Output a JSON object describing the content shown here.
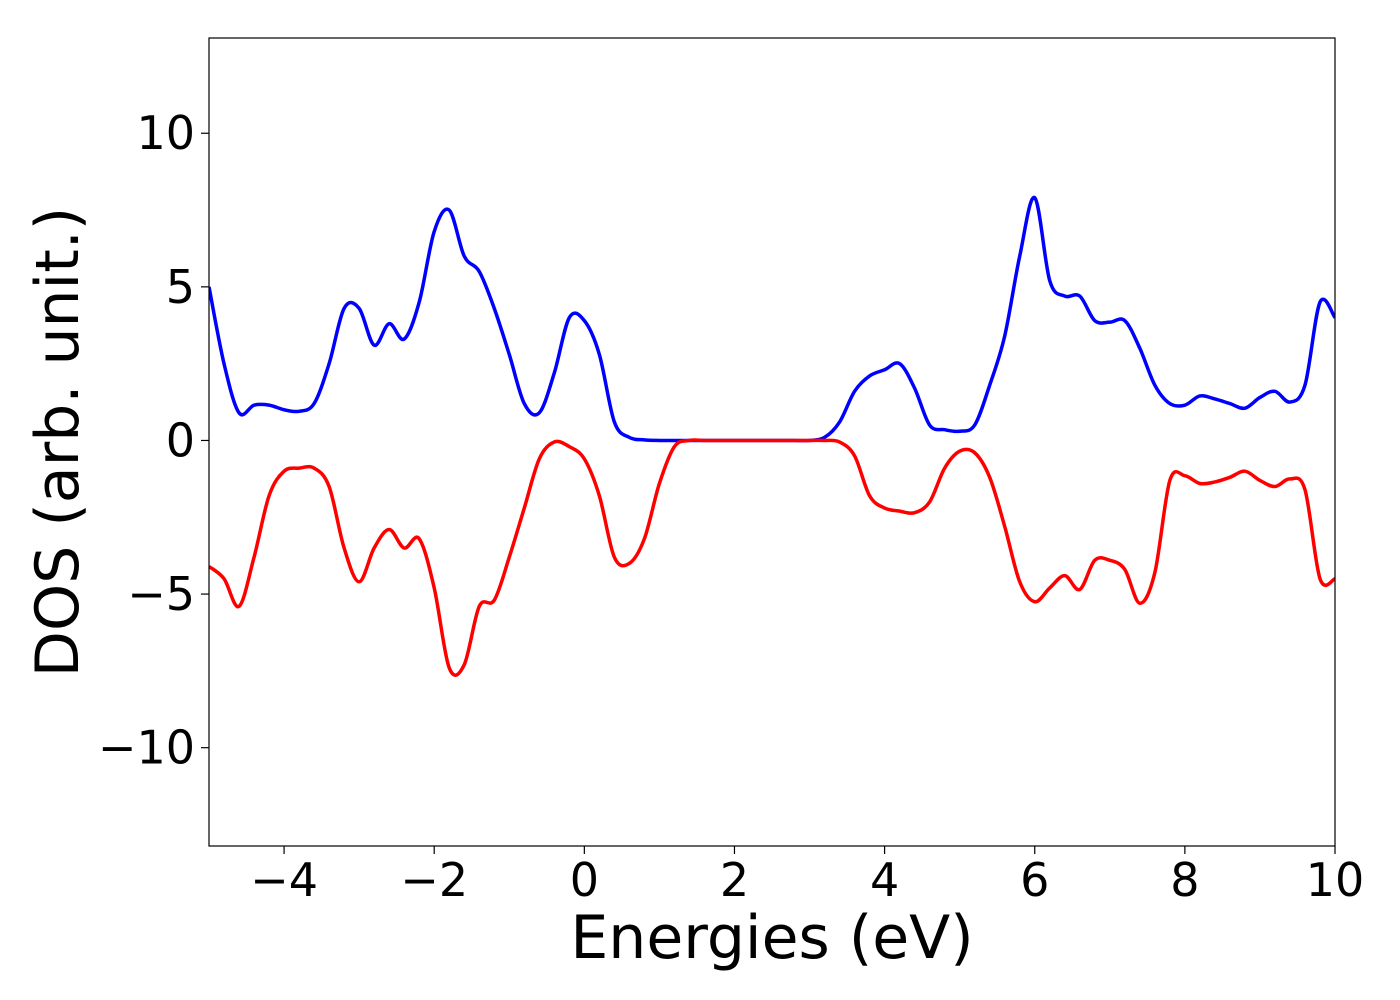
{
  "chart_data": {
    "type": "line",
    "xlabel": "Energies (eV)",
    "ylabel": "DOS (arb. unit.)",
    "x": [
      -5,
      -4.8,
      -4.6,
      -4.4,
      -4.2,
      -4,
      -3.8,
      -3.6,
      -3.4,
      -3.2,
      -3,
      -2.8,
      -2.6,
      -2.4,
      -2.2,
      -2,
      -1.8,
      -1.6,
      -1.4,
      -1.2,
      -1,
      -0.8,
      -0.6,
      -0.4,
      -0.2,
      0,
      0.2,
      0.4,
      0.6,
      0.8,
      1,
      1.2,
      1.4,
      1.6,
      1.8,
      2,
      2.2,
      2.4,
      2.6,
      2.8,
      3,
      3.2,
      3.4,
      3.6,
      3.8,
      4,
      4.2,
      4.4,
      4.6,
      4.8,
      5,
      5.2,
      5.4,
      5.6,
      5.8,
      6,
      6.2,
      6.4,
      6.6,
      6.8,
      7,
      7.2,
      7.4,
      7.6,
      7.8,
      8,
      8.2,
      8.4,
      8.6,
      8.8,
      9,
      9.2,
      9.4,
      9.6,
      9.8,
      10
    ],
    "series": [
      {
        "color": "#0000ff",
        "values": [
          5.0,
          2.5,
          0.9,
          1.15,
          1.15,
          1.0,
          0.95,
          1.2,
          2.5,
          4.3,
          4.3,
          3.1,
          3.8,
          3.3,
          4.5,
          6.8,
          7.5,
          6.0,
          5.5,
          4.3,
          2.8,
          1.2,
          0.9,
          2.2,
          4.0,
          3.9,
          2.8,
          0.6,
          0.1,
          0.02,
          0,
          0,
          0,
          0,
          0,
          0,
          0,
          0,
          0,
          0,
          0,
          0.1,
          0.6,
          1.6,
          2.1,
          2.3,
          2.5,
          1.7,
          0.5,
          0.35,
          0.3,
          0.5,
          1.8,
          3.4,
          6.0,
          7.9,
          5.2,
          4.7,
          4.7,
          3.9,
          3.85,
          3.9,
          3.0,
          1.8,
          1.2,
          1.15,
          1.45,
          1.35,
          1.2,
          1.05,
          1.4,
          1.6,
          1.25,
          1.8,
          4.5,
          4.0
        ]
      },
      {
        "color": "#ff0000",
        "values": [
          -4.1,
          -4.5,
          -5.4,
          -3.8,
          -1.8,
          -1.0,
          -0.9,
          -0.9,
          -1.5,
          -3.5,
          -4.6,
          -3.5,
          -2.9,
          -3.5,
          -3.2,
          -4.8,
          -7.4,
          -7.3,
          -5.4,
          -5.2,
          -3.8,
          -2.2,
          -0.6,
          -0.05,
          -0.2,
          -0.6,
          -1.8,
          -3.8,
          -4.0,
          -3.2,
          -1.4,
          -0.2,
          0,
          0,
          0,
          0,
          0,
          0,
          0,
          0,
          0,
          0,
          -0.05,
          -0.5,
          -1.8,
          -2.2,
          -2.3,
          -2.35,
          -2.0,
          -0.9,
          -0.35,
          -0.4,
          -1.2,
          -2.8,
          -4.6,
          -5.25,
          -4.8,
          -4.4,
          -4.85,
          -3.9,
          -3.9,
          -4.2,
          -5.3,
          -4.3,
          -1.3,
          -1.15,
          -1.4,
          -1.35,
          -1.2,
          -1.0,
          -1.3,
          -1.5,
          -1.25,
          -1.6,
          -4.5,
          -4.5
        ]
      }
    ],
    "xlim": [
      -5,
      10
    ],
    "xticks": [
      {
        "value": -4,
        "label": "−4"
      },
      {
        "value": -2,
        "label": "−2"
      },
      0,
      2,
      4,
      6,
      8,
      10
    ],
    "ylim": [
      -13.2,
      13.1
    ],
    "yticks": [
      {
        "value": -10,
        "label": "−10"
      },
      {
        "value": -5,
        "label": "−5"
      },
      0,
      5,
      10
    ],
    "grid": false
  }
}
